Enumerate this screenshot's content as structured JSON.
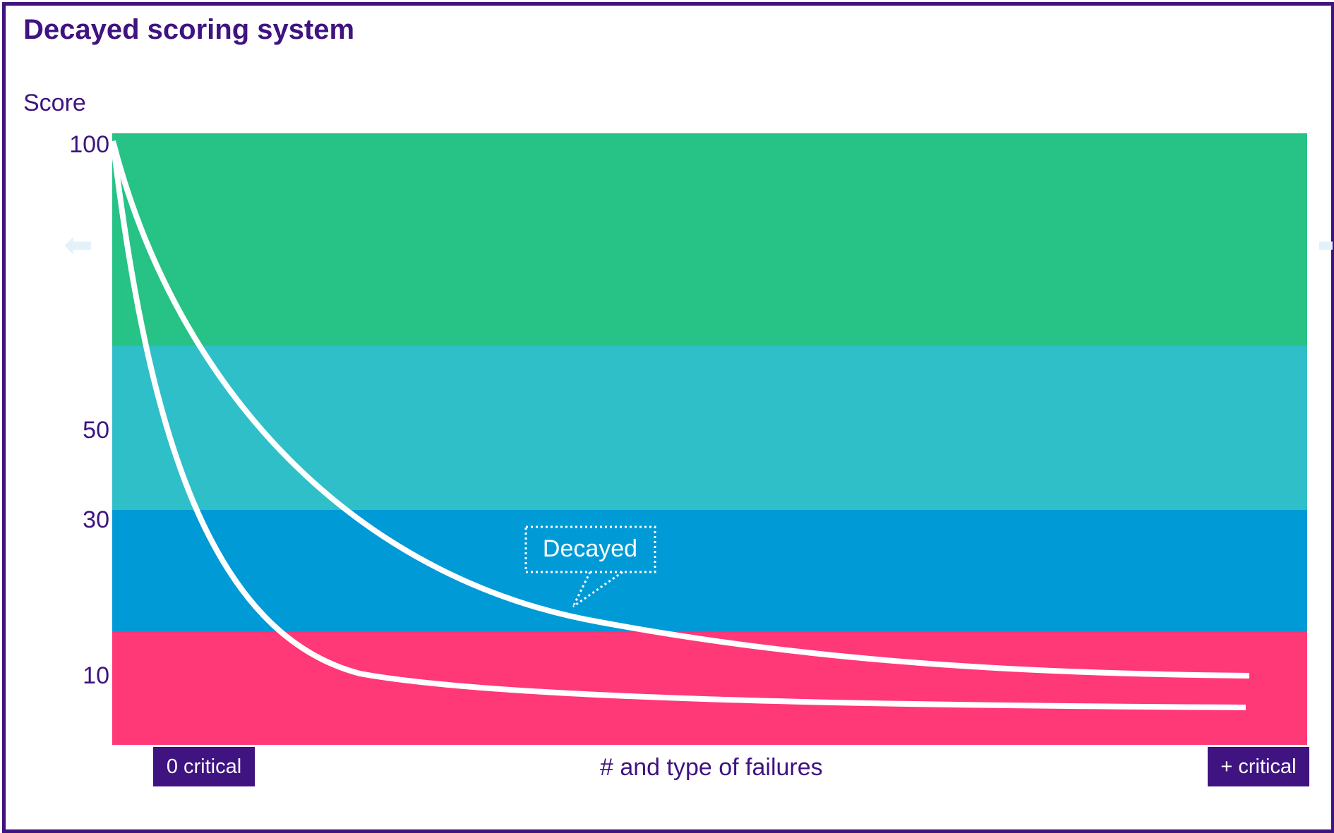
{
  "title": "Decayed scoring system",
  "y_axis": {
    "label": "Score",
    "ticks": [
      "100",
      "50",
      "30",
      "10"
    ]
  },
  "x_axis": {
    "label": "# and type of failures",
    "start_badge": "0 critical",
    "end_badge": "+ critical"
  },
  "zones": [
    {
      "name": "high",
      "color": "#27c286"
    },
    {
      "name": "upper-mid",
      "color": "#2fbfc9"
    },
    {
      "name": "lower-mid",
      "color": "#009ad6"
    },
    {
      "name": "low",
      "color": "#ff3878"
    }
  ],
  "curves": [
    {
      "name": "gentle-decay",
      "color": "#ffffff"
    },
    {
      "name": "steep-decay",
      "color": "#ffffff"
    }
  ],
  "callout": {
    "label": "Decayed"
  },
  "icons": {
    "left_hint": "arrow-left-icon",
    "right_hint": "arrow-right-icon"
  }
}
